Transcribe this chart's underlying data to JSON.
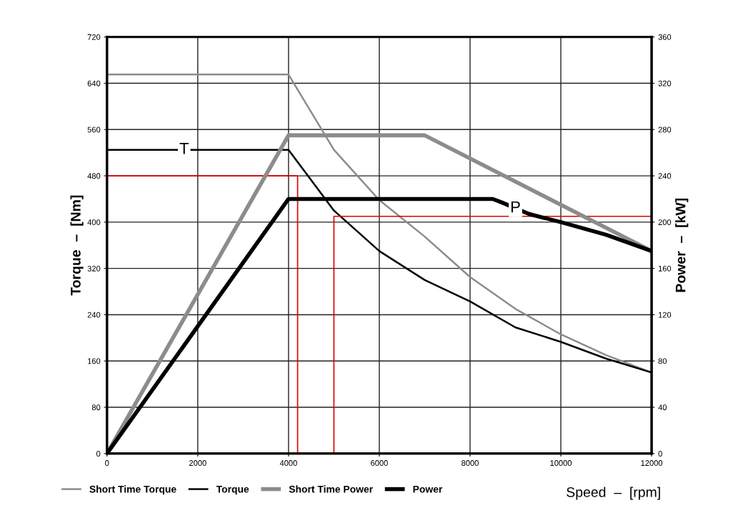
{
  "chart_data": {
    "type": "line",
    "xlabel": "Speed  –  [rpm]",
    "ylabel": "Torque  –  [Nm]",
    "y2label": "Power  –  [kW]",
    "xlim": [
      0,
      12000
    ],
    "xticks": [
      0,
      2000,
      4000,
      6000,
      8000,
      10000,
      12000
    ],
    "ylim": [
      0,
      720
    ],
    "yticks": [
      0,
      80,
      160,
      240,
      320,
      400,
      480,
      560,
      640,
      720
    ],
    "y2lim": [
      0,
      360
    ],
    "y2ticks": [
      0,
      40,
      80,
      120,
      160,
      200,
      240,
      280,
      320,
      360
    ],
    "grid": true,
    "legend": "bottom",
    "line_style": "solid",
    "marker": "none",
    "annotations": [
      {
        "text": "T",
        "x": 1700,
        "y": 525
      },
      {
        "text": "P",
        "x": 9000,
        "y": 424
      }
    ],
    "series": [
      {
        "name": "Short Time Torque",
        "color": "#8c8c8c",
        "x": [
          0,
          4000,
          5000,
          6000,
          7000,
          8000,
          9000,
          10000,
          11000,
          12000
        ],
        "values": [
          655,
          655,
          525,
          438,
          375,
          305,
          250,
          206,
          170,
          140
        ]
      },
      {
        "name": "Torque",
        "color": "#000000",
        "x": [
          0,
          4000,
          5000,
          6000,
          7000,
          8000,
          9000,
          10000,
          11000,
          12000
        ],
        "values": [
          525,
          525,
          420,
          350,
          300,
          263,
          218,
          193,
          164,
          140
        ]
      },
      {
        "name": "Short Time Power",
        "color": "#8c8c8c",
        "axis": "y2",
        "x": [
          0,
          4000,
          7000,
          12000
        ],
        "values": [
          0,
          275,
          275,
          175
        ]
      },
      {
        "name": "Power",
        "color": "#000000",
        "axis": "y2",
        "x": [
          0,
          4000,
          8500,
          8700,
          9300,
          10000,
          11000,
          12000
        ],
        "values": [
          0,
          220,
          220,
          217,
          207,
          200,
          189,
          175
        ]
      },
      {
        "color": "#e00000",
        "x": [
          0,
          4200,
          4200
        ],
        "values": [
          480,
          480,
          0
        ]
      },
      {
        "color": "#e00000",
        "x": [
          12000,
          5000,
          5000
        ],
        "values": [
          410,
          410,
          0
        ]
      }
    ]
  }
}
